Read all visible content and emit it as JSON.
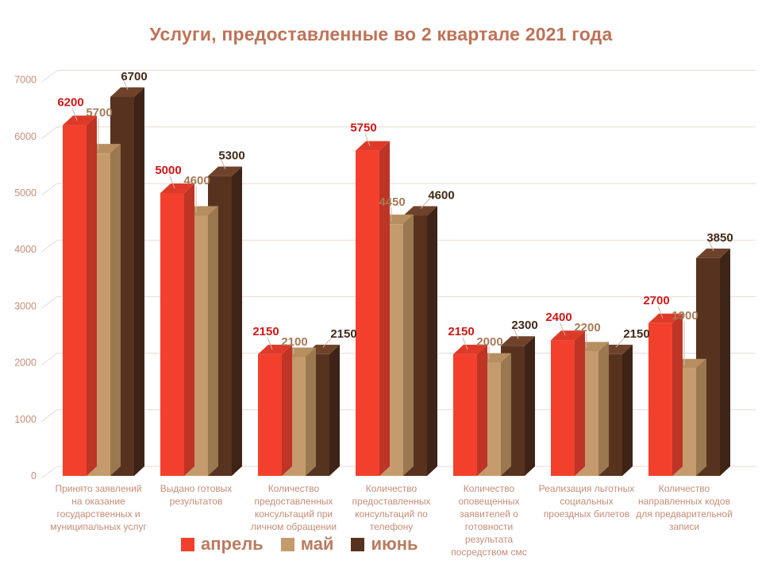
{
  "chart_data": {
    "type": "bar",
    "title": "Услуги, предоставленные во 2 квартале 2021 года",
    "categories": [
      "Принято заявлений на оказание государственных и муниципальных услуг",
      "Выдано готовых результатов",
      "Количество предоставленных консультаций при личном обращении",
      "Количество предоставленных консультаций по телефону",
      "Количество оповещенных заявителей о готовности результата посредством смс",
      "Реализация льготных социальных проездных билетов",
      "Количество направленных кодов для предварительной записи"
    ],
    "series": [
      {
        "name": "апрель",
        "color": "#F2402D",
        "side_color": "#BE3425",
        "top_color": "#DE3A29",
        "label_color": "#CE1817",
        "values": [
          6200,
          5000,
          2150,
          5750,
          2150,
          2400,
          2700
        ]
      },
      {
        "name": "май",
        "color": "#C59B6D",
        "side_color": "#9A7850",
        "top_color": "#B78E60",
        "label_color": "#A67A58",
        "values": [
          5700,
          4600,
          2100,
          4450,
          2000,
          2200,
          1900
        ]
      },
      {
        "name": "июнь",
        "color": "#57331F",
        "side_color": "#3E2416",
        "top_color": "#6F432B",
        "label_color": "#422A19",
        "values": [
          6700,
          5300,
          2150,
          4600,
          2300,
          2150,
          3850
        ]
      }
    ],
    "yticks": [
      0,
      1000,
      2000,
      3000,
      4000,
      5000,
      6000,
      7000
    ],
    "ylim": [
      0,
      7000
    ],
    "xlabel": "",
    "ylabel": "",
    "grid": true,
    "legend_position": "bottom",
    "style": {
      "effect": "3d",
      "background": "#FFFFFF",
      "title_color": "#BE7257",
      "legend_text_color": "#B97B60",
      "axis_text_color": "#C48D78",
      "category_text_color": "#C48D78",
      "gridline_color": "#E7DAD3",
      "leader_line_color": "#CBB4A8"
    }
  }
}
